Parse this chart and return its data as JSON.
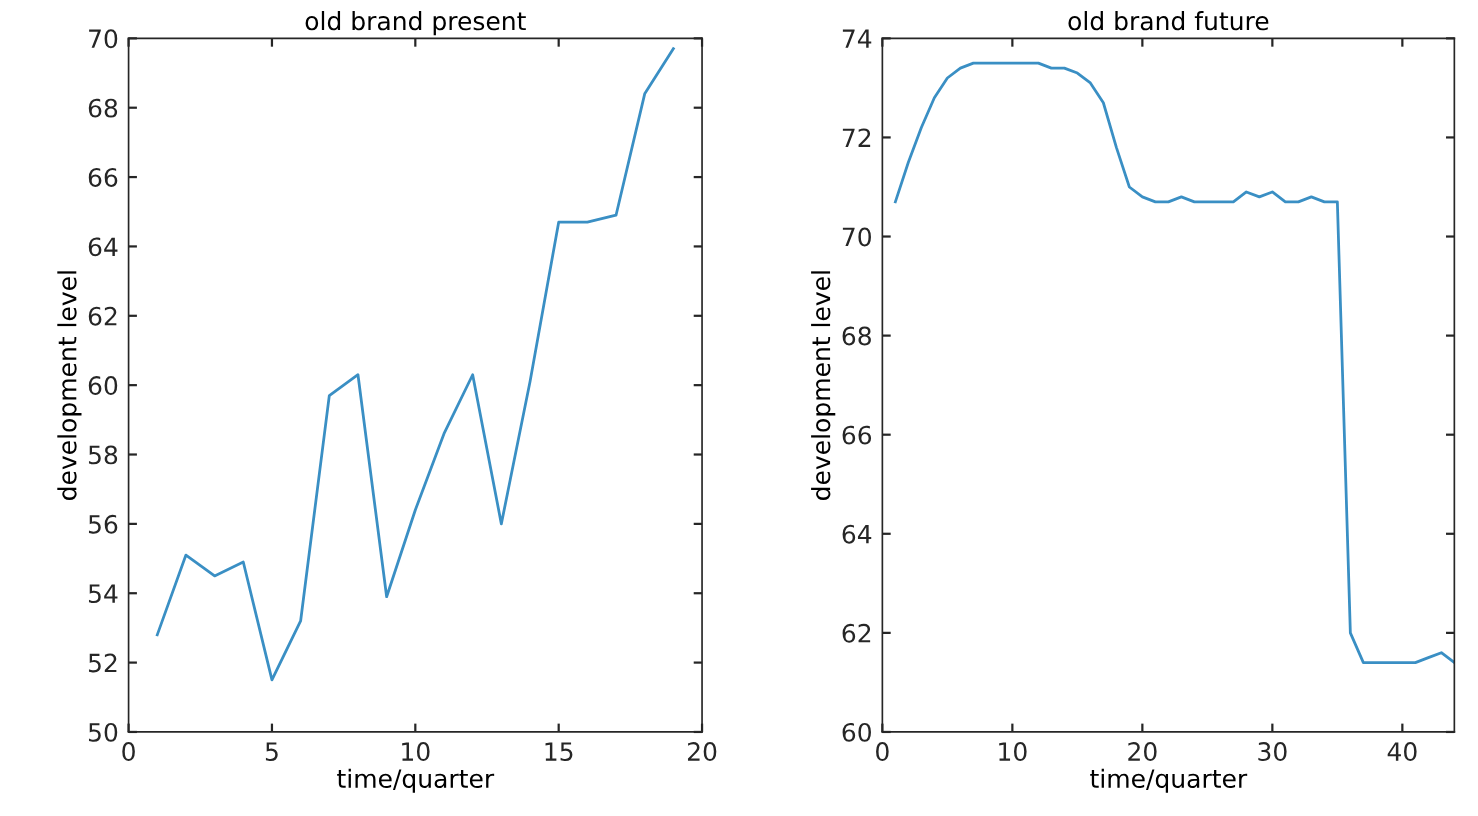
{
  "chart_data": [
    {
      "type": "line",
      "title": "old brand present",
      "xlabel": "time/quarter",
      "ylabel": "development level",
      "x": [
        1,
        2,
        3,
        4,
        5,
        6,
        7,
        8,
        9,
        10,
        11,
        12,
        13,
        14,
        15,
        16,
        17,
        18,
        19
      ],
      "series": [
        {
          "color": "#3a8fc4",
          "values": [
            52.8,
            55.1,
            54.5,
            54.9,
            51.5,
            53.2,
            59.7,
            60.3,
            53.9,
            56.4,
            58.6,
            60.3,
            56.0,
            60.1,
            64.7,
            64.7,
            64.9,
            68.4,
            69.7
          ]
        }
      ],
      "xlim": [
        0,
        20
      ],
      "xticks": [
        0,
        5,
        10,
        15,
        20
      ],
      "ylim": [
        50,
        70
      ],
      "yticks": [
        50,
        52,
        54,
        56,
        58,
        60,
        62,
        64,
        66,
        68,
        70
      ],
      "grid": false
    },
    {
      "type": "line",
      "title": "old brand future",
      "xlabel": "time/quarter",
      "ylabel": "development level",
      "x": [
        1,
        2,
        3,
        4,
        5,
        6,
        7,
        8,
        9,
        10,
        11,
        12,
        13,
        14,
        15,
        16,
        17,
        18,
        19,
        20,
        21,
        22,
        23,
        24,
        25,
        26,
        27,
        28,
        29,
        30,
        31,
        32,
        33,
        34,
        35,
        36,
        37,
        38,
        39,
        40,
        41,
        42,
        43,
        44
      ],
      "series": [
        {
          "color": "#3a8fc4",
          "values": [
            70.7,
            71.5,
            72.2,
            72.8,
            73.2,
            73.4,
            73.5,
            73.5,
            73.5,
            73.5,
            73.5,
            73.5,
            73.4,
            73.4,
            73.3,
            73.1,
            72.7,
            71.8,
            71.0,
            70.8,
            70.7,
            70.7,
            70.8,
            70.7,
            70.7,
            70.7,
            70.7,
            70.9,
            70.8,
            70.9,
            70.7,
            70.7,
            70.8,
            70.7,
            70.7,
            62.0,
            61.4,
            61.4,
            61.4,
            61.4,
            61.4,
            61.5,
            61.6,
            61.4
          ]
        }
      ],
      "xlim": [
        0,
        44
      ],
      "xticks": [
        0,
        10,
        20,
        30,
        40
      ],
      "ylim": [
        60,
        74
      ],
      "yticks": [
        60,
        62,
        64,
        66,
        68,
        70,
        72,
        74
      ],
      "grid": false
    }
  ]
}
